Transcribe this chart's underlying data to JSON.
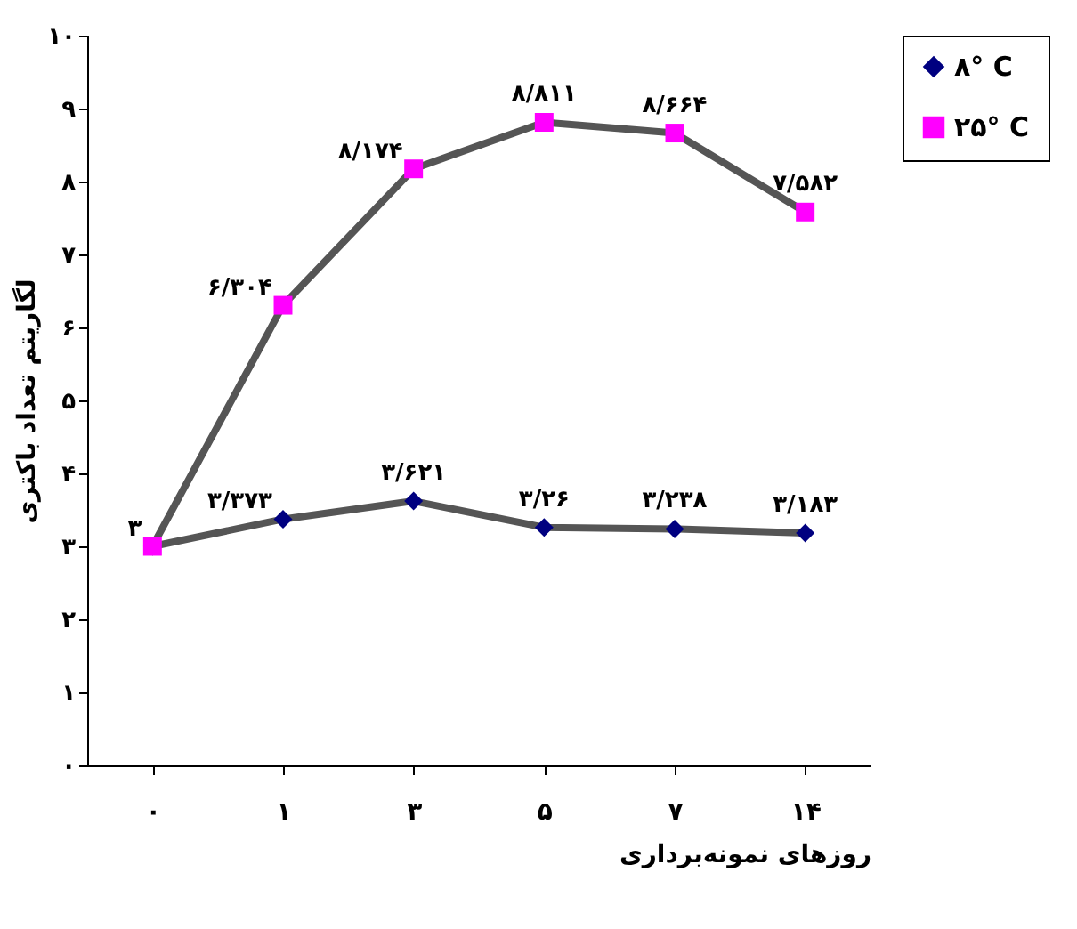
{
  "chart_data": {
    "type": "line",
    "xlabel": "روزهای نمونه‌برداری",
    "ylabel": "لگاریتم تعداد باکتری",
    "categories": [
      "۰",
      "۱",
      "۳",
      "۵",
      "۷",
      "۱۴"
    ],
    "ylim": [
      0,
      10
    ],
    "yticks": [
      {
        "value": 0,
        "label": "۰"
      },
      {
        "value": 1,
        "label": "۱"
      },
      {
        "value": 2,
        "label": "۲"
      },
      {
        "value": 3,
        "label": "۳"
      },
      {
        "value": 4,
        "label": "۴"
      },
      {
        "value": 5,
        "label": "۵"
      },
      {
        "value": 6,
        "label": "۶"
      },
      {
        "value": 7,
        "label": "۷"
      },
      {
        "value": 8,
        "label": "۸"
      },
      {
        "value": 9,
        "label": "۹"
      },
      {
        "value": 10,
        "label": "۱۰"
      }
    ],
    "series": [
      {
        "name": "۸° C",
        "color": "#000080",
        "marker": "diamond",
        "values": [
          3,
          3.373,
          3.621,
          3.26,
          3.238,
          3.183
        ],
        "value_labels": [
          null,
          "۳/۳۷۳",
          "۳/۶۲۱",
          "۳/۲۶",
          "۳/۲۳۸",
          "۳/۱۸۳"
        ]
      },
      {
        "name": "۲۵° C",
        "color": "#ff00ff",
        "marker": "square",
        "values": [
          3,
          6.304,
          8.174,
          8.811,
          8.664,
          7.582
        ],
        "value_labels": [
          "۳",
          "۶/۳۰۴",
          "۸/۱۷۴",
          "۸/۸۱۱",
          "۸/۶۶۴",
          "۷/۵۸۲"
        ]
      }
    ],
    "grid": false,
    "legend": "right"
  }
}
